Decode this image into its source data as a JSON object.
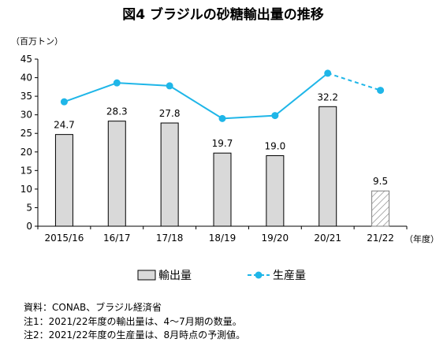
{
  "chart_data": {
    "type": "bar+line",
    "title": "図4 ブラジルの砂糖輸出量の推移",
    "y_unit": "（百万トン）",
    "x_unit": "（年度）",
    "categories": [
      "2015/16",
      "16/17",
      "17/18",
      "18/19",
      "19/20",
      "20/21",
      "21/22"
    ],
    "ylim": [
      0,
      45
    ],
    "yticks": [
      0,
      5,
      10,
      15,
      20,
      25,
      30,
      35,
      40,
      45
    ],
    "grid": false,
    "series": [
      {
        "name": "輸出量",
        "type": "bar",
        "color": "#d9d9d9",
        "values": [
          24.7,
          28.3,
          27.8,
          19.7,
          19.0,
          32.2,
          9.5
        ],
        "data_labels": [
          "24.7",
          "28.3",
          "27.8",
          "19.7",
          "19.0",
          "32.2",
          "9.5"
        ],
        "hatched_index": 6
      },
      {
        "name": "生産量",
        "type": "line",
        "color": "#1fb6e8",
        "values": [
          33.5,
          38.6,
          37.8,
          29.0,
          29.8,
          41.2,
          36.6
        ],
        "dashed_from_index": 5
      }
    ],
    "legend_position": "bottom"
  },
  "notes": [
    "資料：CONAB、ブラジル経済省",
    "注1：2021/22年度の輸出量は、4～7月期の数量。",
    "注2：2021/22年度の生産量は、8月時点の予測値。"
  ]
}
